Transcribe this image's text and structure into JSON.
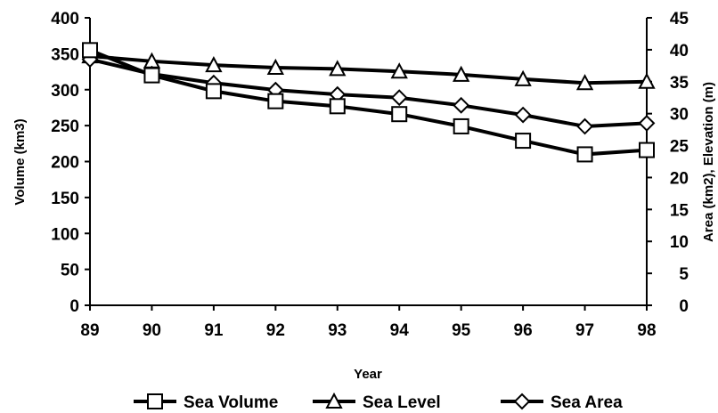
{
  "chart_data": {
    "type": "line",
    "title": "",
    "xlabel": "Year",
    "ylabel_left": "Volume (km3)",
    "ylabel_right": "Area (km2), Elevation (m)",
    "categories": [
      "89",
      "90",
      "91",
      "92",
      "93",
      "94",
      "95",
      "96",
      "97",
      "98"
    ],
    "ylim_left": [
      0,
      400
    ],
    "yticks_left": [
      "0",
      "50",
      "100",
      "150",
      "200",
      "250",
      "300",
      "350",
      "400"
    ],
    "ylim_right": [
      0,
      45
    ],
    "yticks_right": [
      "0",
      "5",
      "10",
      "15",
      "20",
      "25",
      "30",
      "35",
      "40",
      "45"
    ],
    "grid": false,
    "legend_position": "bottom",
    "series": [
      {
        "name": "Sea Volume",
        "axis": "left",
        "marker": "square",
        "values": [
          355,
          320,
          298,
          284,
          277,
          266,
          249,
          229,
          210,
          216
        ]
      },
      {
        "name": "Sea Level",
        "axis": "right",
        "marker": "triangle",
        "values": [
          39.0,
          38.2,
          37.6,
          37.2,
          37.0,
          36.6,
          36.1,
          35.4,
          34.8,
          35.0
        ]
      },
      {
        "name": "Sea Area",
        "axis": "right",
        "marker": "diamond",
        "values": [
          38.5,
          36.2,
          34.8,
          33.7,
          33.0,
          32.5,
          31.3,
          29.8,
          28.0,
          28.5
        ]
      }
    ]
  }
}
